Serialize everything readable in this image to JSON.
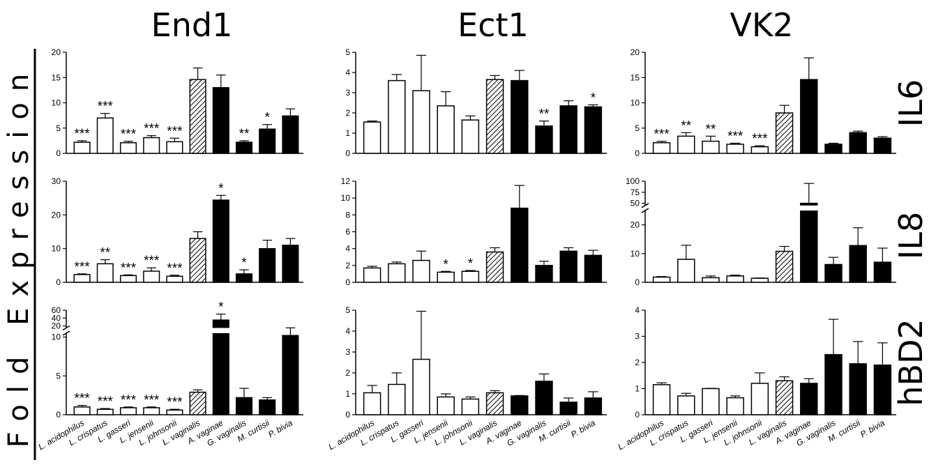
{
  "figure": {
    "y_label": "Fold Expression",
    "columns": [
      "End1",
      "Ect1",
      "VK2"
    ],
    "rows": [
      "IL6",
      "IL8",
      "hBD2"
    ],
    "categories": [
      "L. acidophilus",
      "L. crispatus",
      "L. gasseri",
      "L. jensenii",
      "L. johnsonii",
      "L. vaginalis",
      "A. vaginae",
      "G. vaginalis",
      "M. curtisii",
      "P. bivia"
    ],
    "bar_fill": [
      "open",
      "open",
      "open",
      "open",
      "open",
      "hatched",
      "solid",
      "solid",
      "solid",
      "solid"
    ]
  },
  "chart_data": [
    {
      "type": "bar",
      "cell_line": "End1",
      "gene": "IL6",
      "categories": [
        "L. acidophilus",
        "L. crispatus",
        "L. gasseri",
        "L. jensenii",
        "L. johnsonii",
        "L. vaginalis",
        "A. vaginae",
        "G. vaginalis",
        "M. curtisii",
        "P. bivia"
      ],
      "values": [
        2.2,
        7.0,
        2.1,
        3.1,
        2.3,
        14.6,
        13.0,
        2.2,
        4.8,
        7.4
      ],
      "errors": [
        0.3,
        0.9,
        0.3,
        0.4,
        0.7,
        2.3,
        2.5,
        0.3,
        0.9,
        1.4
      ],
      "significance": [
        "***",
        "***",
        "***",
        "***",
        "***",
        "",
        "",
        "**",
        "*",
        ""
      ],
      "ylim": [
        0,
        20
      ],
      "yticks": [
        0,
        5,
        10,
        15,
        20
      ]
    },
    {
      "type": "bar",
      "cell_line": "Ect1",
      "gene": "IL6",
      "categories": [
        "L. acidophilus",
        "L. crispatus",
        "L. gasseri",
        "L. jensenii",
        "L. johnsonii",
        "L. vaginalis",
        "A. vaginae",
        "G. vaginalis",
        "M. curtisii",
        "P. bivia"
      ],
      "values": [
        1.55,
        3.6,
        3.1,
        2.35,
        1.65,
        3.65,
        3.6,
        1.35,
        2.35,
        2.3
      ],
      "errors": [
        0.05,
        0.3,
        1.75,
        0.7,
        0.2,
        0.2,
        0.5,
        0.25,
        0.25,
        0.1
      ],
      "significance": [
        "",
        "",
        "",
        "",
        "",
        "",
        "",
        "**",
        "",
        "*"
      ],
      "ylim": [
        0,
        5
      ],
      "yticks": [
        0,
        1,
        2,
        3,
        4,
        5
      ]
    },
    {
      "type": "bar",
      "cell_line": "VK2",
      "gene": "IL6",
      "categories": [
        "L. acidophilus",
        "L. crispatus",
        "L. gasseri",
        "L. jensenii",
        "L. johnsonii",
        "L. vaginalis",
        "A. vaginae",
        "G. vaginalis",
        "M. curtisii",
        "P. bivia"
      ],
      "values": [
        2.1,
        3.4,
        2.4,
        1.8,
        1.3,
        8.0,
        14.6,
        1.8,
        4.1,
        3.0
      ],
      "errors": [
        0.3,
        0.7,
        1.0,
        0.2,
        0.2,
        1.5,
        4.3,
        0.2,
        0.3,
        0.3
      ],
      "significance": [
        "***",
        "**",
        "**",
        "***",
        "***",
        "",
        "",
        "",
        "",
        ""
      ],
      "ylim": [
        0,
        20
      ],
      "yticks": [
        0,
        5,
        10,
        15,
        20
      ]
    },
    {
      "type": "bar",
      "cell_line": "End1",
      "gene": "IL8",
      "categories": [
        "L. acidophilus",
        "L. crispatus",
        "L. gasseri",
        "L. jensenii",
        "L. johnsonii",
        "L. vaginalis",
        "A. vaginae",
        "G. vaginalis",
        "M. curtisii",
        "P. bivia"
      ],
      "values": [
        2.3,
        5.5,
        2.0,
        3.3,
        1.8,
        13.0,
        24.4,
        2.5,
        10.0,
        11.0
      ],
      "errors": [
        0.2,
        1.2,
        0.2,
        1.0,
        0.3,
        2.0,
        1.4,
        1.2,
        2.5,
        2.0
      ],
      "significance": [
        "***",
        "**",
        "***",
        "***",
        "***",
        "",
        "*",
        "*",
        "",
        ""
      ],
      "ylim": [
        0,
        30
      ],
      "yticks": [
        0,
        10,
        20,
        30
      ]
    },
    {
      "type": "bar",
      "cell_line": "Ect1",
      "gene": "IL8",
      "categories": [
        "L. acidophilus",
        "L. crispatus",
        "L. gasseri",
        "L. jensenii",
        "L. johnsonii",
        "L. vaginalis",
        "A. vaginae",
        "G. vaginalis",
        "M. curtisii",
        "P. bivia"
      ],
      "values": [
        1.7,
        2.2,
        2.6,
        1.2,
        1.3,
        3.6,
        8.8,
        2.0,
        3.7,
        3.2
      ],
      "errors": [
        0.2,
        0.2,
        1.1,
        0.1,
        0.1,
        0.5,
        2.7,
        0.5,
        0.4,
        0.6
      ],
      "significance": [
        "",
        "",
        "",
        "*",
        "*",
        "",
        "",
        "",
        "",
        ""
      ],
      "ylim": [
        0,
        12
      ],
      "yticks": [
        0,
        2,
        4,
        6,
        8,
        10,
        12
      ]
    },
    {
      "type": "bar",
      "cell_line": "VK2",
      "gene": "IL8",
      "categories": [
        "L. acidophilus",
        "L. crispatus",
        "L. gasseri",
        "L. jensenii",
        "L. johnsonii",
        "L. vaginalis",
        "A. vaginae",
        "G. vaginalis",
        "M. curtisii",
        "P. bivia"
      ],
      "values": [
        1.8,
        8.0,
        1.6,
        2.2,
        1.4,
        10.8,
        50,
        6.2,
        12.8,
        7.0
      ],
      "errors": [
        0.2,
        4.9,
        0.6,
        0.3,
        0.1,
        1.7,
        45,
        2.5,
        6.2,
        4.9
      ],
      "significance": [
        "",
        "",
        "",
        "",
        "",
        "",
        "",
        "",
        "",
        ""
      ],
      "ylim": [
        0,
        100
      ],
      "yticks": [
        0,
        10,
        20,
        50,
        75,
        100
      ],
      "axis_break": [
        25,
        45
      ]
    },
    {
      "type": "bar",
      "cell_line": "End1",
      "gene": "hBD2",
      "categories": [
        "L. acidophilus",
        "L. crispatus",
        "L. gasseri",
        "L. jensenii",
        "L. johnsonii",
        "L. vaginalis",
        "A. vaginae",
        "G. vaginalis",
        "M. curtisii",
        "P. bivia"
      ],
      "values": [
        1.0,
        0.7,
        0.9,
        0.9,
        0.6,
        2.9,
        35,
        2.2,
        1.9,
        10.2
      ],
      "errors": [
        0.2,
        0.1,
        0.1,
        0.1,
        0.1,
        0.3,
        15,
        1.2,
        0.3,
        5.0
      ],
      "significance": [
        "***",
        "***",
        "***",
        "***",
        "***",
        "",
        "*",
        "",
        "",
        ""
      ],
      "ylim": [
        0,
        60
      ],
      "yticks": [
        0,
        5,
        10,
        20,
        40,
        60
      ],
      "axis_break": [
        10.5,
        15
      ]
    },
    {
      "type": "bar",
      "cell_line": "Ect1",
      "gene": "hBD2",
      "categories": [
        "L. acidophilus",
        "L. crispatus",
        "L. gasseri",
        "L. jensenii",
        "L. johnsonii",
        "L. vaginalis",
        "A. vaginae",
        "G. vaginalis",
        "M. curtisii",
        "P. bivia"
      ],
      "values": [
        1.05,
        1.45,
        2.65,
        0.85,
        0.75,
        1.05,
        0.9,
        1.6,
        0.6,
        0.8
      ],
      "errors": [
        0.35,
        0.55,
        2.3,
        0.15,
        0.1,
        0.1,
        0.02,
        0.35,
        0.2,
        0.3
      ],
      "significance": [
        "",
        "",
        "",
        "",
        "",
        "",
        "",
        "",
        "",
        ""
      ],
      "ylim": [
        0,
        5
      ],
      "yticks": [
        0,
        1,
        2,
        3,
        4,
        5
      ]
    },
    {
      "type": "bar",
      "cell_line": "VK2",
      "gene": "hBD2",
      "categories": [
        "L. acidophilus",
        "L. crispatus",
        "L. gasseri",
        "L. jensenii",
        "L. johnsonii",
        "L. vaginalis",
        "A. vaginae",
        "G. vaginalis",
        "M. curtisii",
        "P. bivia"
      ],
      "values": [
        1.15,
        0.72,
        1.0,
        0.65,
        1.2,
        1.3,
        1.2,
        2.3,
        1.95,
        1.9
      ],
      "errors": [
        0.07,
        0.1,
        0.01,
        0.07,
        0.4,
        0.15,
        0.18,
        1.35,
        0.85,
        0.85
      ],
      "significance": [
        "",
        "",
        "",
        "",
        "",
        "",
        "",
        "",
        "",
        ""
      ],
      "ylim": [
        0,
        4
      ],
      "yticks": [
        0,
        1,
        2,
        3,
        4
      ]
    }
  ]
}
